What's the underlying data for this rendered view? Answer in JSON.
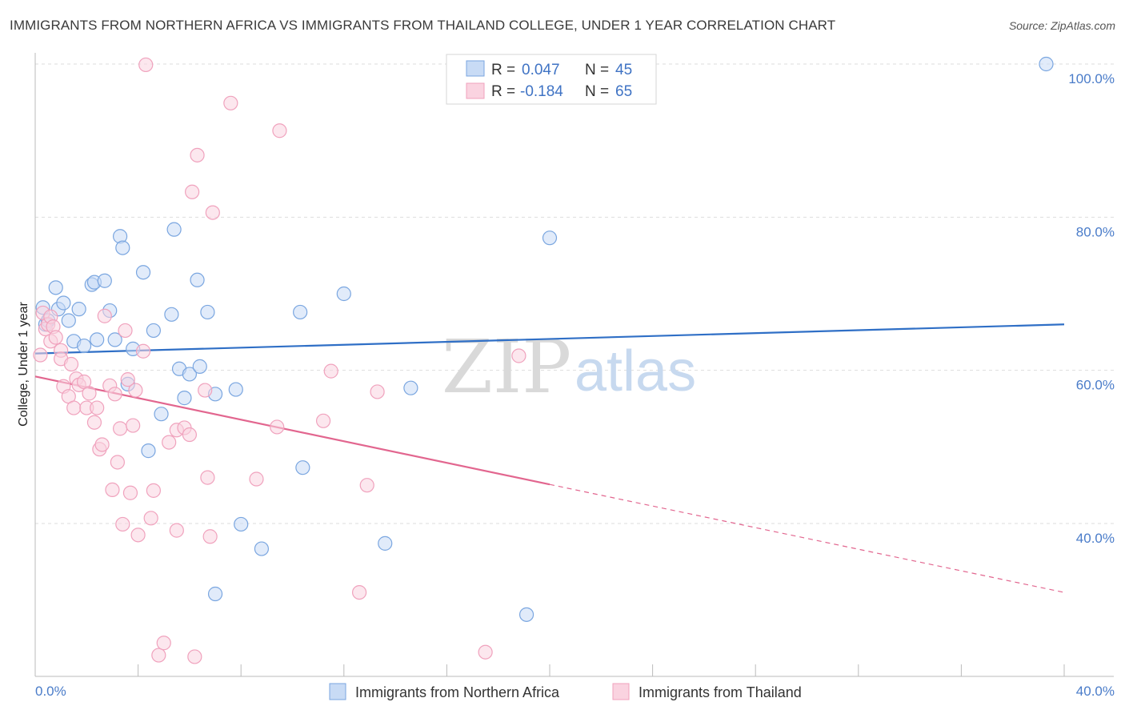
{
  "header": {
    "title": "IMMIGRANTS FROM NORTHERN AFRICA VS IMMIGRANTS FROM THAILAND COLLEGE, UNDER 1 YEAR CORRELATION CHART",
    "source": "Source: ZipAtlas.com"
  },
  "watermark": {
    "zip": "ZIP",
    "atlas": "atlas"
  },
  "chart_data": {
    "type": "scatter",
    "title": "IMMIGRANTS FROM NORTHERN AFRICA VS IMMIGRANTS FROM THAILAND COLLEGE, UNDER 1 YEAR CORRELATION CHART",
    "xlabel": "",
    "ylabel": "College, Under 1 year",
    "xlim": [
      0,
      40
    ],
    "ylim": [
      23,
      102
    ],
    "x_tick_labels": [
      "0.0%",
      "40.0%"
    ],
    "y_ticks": [
      40,
      60,
      80,
      100
    ],
    "y_tick_labels": [
      "40.0%",
      "60.0%",
      "80.0%",
      "100.0%"
    ],
    "grid": true,
    "legend": {
      "position": "top-center",
      "entries": [
        {
          "r_label": "R =",
          "r_value": "0.047",
          "n_label": "N =",
          "n_value": "45"
        },
        {
          "r_label": "R =",
          "r_value": "-0.184",
          "n_label": "N =",
          "n_value": "65"
        }
      ]
    },
    "series": [
      {
        "name": "Immigrants from Northern Africa",
        "color": "#7aa6e0",
        "fill": "#c8dbf5",
        "trend_color": "#2f6fc6",
        "trend": {
          "x0": 0,
          "y0": 62.2,
          "x1": 40,
          "y1": 66.0,
          "solid_until": 40
        },
        "points": [
          [
            0.3,
            68.2
          ],
          [
            0.4,
            66.0
          ],
          [
            0.5,
            66.5
          ],
          [
            0.8,
            70.8
          ],
          [
            0.9,
            68.0
          ],
          [
            1.1,
            68.8
          ],
          [
            1.3,
            66.5
          ],
          [
            1.5,
            63.8
          ],
          [
            1.7,
            68.0
          ],
          [
            1.9,
            63.2
          ],
          [
            2.2,
            71.2
          ],
          [
            2.3,
            71.5
          ],
          [
            2.7,
            71.7
          ],
          [
            2.9,
            67.8
          ],
          [
            3.1,
            64.0
          ],
          [
            2.4,
            64.0
          ],
          [
            3.3,
            77.5
          ],
          [
            3.4,
            76.0
          ],
          [
            3.6,
            58.2
          ],
          [
            3.8,
            62.8
          ],
          [
            4.2,
            72.8
          ],
          [
            4.6,
            65.2
          ],
          [
            4.4,
            49.5
          ],
          [
            4.9,
            54.3
          ],
          [
            5.3,
            67.3
          ],
          [
            5.4,
            78.4
          ],
          [
            5.6,
            60.2
          ],
          [
            5.8,
            56.4
          ],
          [
            6.0,
            59.5
          ],
          [
            6.3,
            71.8
          ],
          [
            6.4,
            60.5
          ],
          [
            6.7,
            67.6
          ],
          [
            7.0,
            30.8
          ],
          [
            7.0,
            56.9
          ],
          [
            7.8,
            57.5
          ],
          [
            8.0,
            39.9
          ],
          [
            8.8,
            36.7
          ],
          [
            10.3,
            67.6
          ],
          [
            10.4,
            47.3
          ],
          [
            12.0,
            70.0
          ],
          [
            13.6,
            37.4
          ],
          [
            14.6,
            57.7
          ],
          [
            19.1,
            28.1
          ],
          [
            20.0,
            77.3
          ],
          [
            39.3,
            100.0
          ]
        ]
      },
      {
        "name": "Immigrants from Thailand",
        "color": "#f0a2bd",
        "fill": "#fad3e0",
        "trend_color": "#e2668f",
        "trend": {
          "x0": 0,
          "y0": 59.2,
          "x1": 40,
          "y1": 31.0,
          "solid_until": 20
        },
        "points": [
          [
            0.3,
            67.5
          ],
          [
            0.4,
            65.4
          ],
          [
            0.5,
            66.0
          ],
          [
            0.6,
            67.0
          ],
          [
            0.6,
            63.8
          ],
          [
            0.7,
            65.7
          ],
          [
            0.8,
            64.3
          ],
          [
            1.0,
            62.6
          ],
          [
            1.0,
            61.5
          ],
          [
            1.1,
            57.9
          ],
          [
            1.3,
            56.6
          ],
          [
            1.4,
            60.8
          ],
          [
            1.5,
            55.1
          ],
          [
            1.6,
            58.9
          ],
          [
            1.7,
            58.1
          ],
          [
            1.9,
            58.5
          ],
          [
            2.0,
            55.1
          ],
          [
            2.1,
            57.0
          ],
          [
            2.3,
            53.2
          ],
          [
            2.4,
            55.1
          ],
          [
            2.5,
            49.7
          ],
          [
            2.6,
            50.3
          ],
          [
            2.7,
            67.1
          ],
          [
            2.9,
            58.0
          ],
          [
            3.0,
            44.4
          ],
          [
            3.1,
            56.9
          ],
          [
            3.2,
            48.0
          ],
          [
            3.3,
            52.4
          ],
          [
            3.4,
            39.9
          ],
          [
            3.5,
            65.2
          ],
          [
            3.6,
            58.8
          ],
          [
            3.7,
            44.0
          ],
          [
            3.8,
            52.8
          ],
          [
            3.9,
            57.4
          ],
          [
            4.0,
            38.5
          ],
          [
            4.2,
            62.5
          ],
          [
            4.3,
            99.9
          ],
          [
            4.5,
            40.7
          ],
          [
            4.6,
            44.3
          ],
          [
            4.8,
            22.8
          ],
          [
            5.0,
            24.4
          ],
          [
            5.2,
            50.6
          ],
          [
            5.5,
            52.2
          ],
          [
            5.5,
            39.1
          ],
          [
            5.8,
            52.5
          ],
          [
            6.0,
            51.6
          ],
          [
            6.1,
            83.3
          ],
          [
            6.2,
            22.6
          ],
          [
            6.3,
            88.1
          ],
          [
            6.6,
            57.4
          ],
          [
            6.7,
            46.0
          ],
          [
            6.8,
            38.3
          ],
          [
            6.9,
            80.6
          ],
          [
            7.6,
            94.9
          ],
          [
            8.6,
            45.8
          ],
          [
            9.4,
            52.6
          ],
          [
            9.5,
            91.3
          ],
          [
            11.2,
            53.4
          ],
          [
            11.5,
            59.9
          ],
          [
            12.6,
            31.0
          ],
          [
            12.9,
            45.0
          ],
          [
            13.3,
            57.2
          ],
          [
            17.5,
            23.2
          ],
          [
            18.8,
            61.9
          ],
          [
            0.2,
            62.0
          ]
        ]
      }
    ]
  },
  "bottom_legend": {
    "items": [
      {
        "label": "Immigrants from Northern Africa"
      },
      {
        "label": "Immigrants from Thailand"
      }
    ]
  }
}
